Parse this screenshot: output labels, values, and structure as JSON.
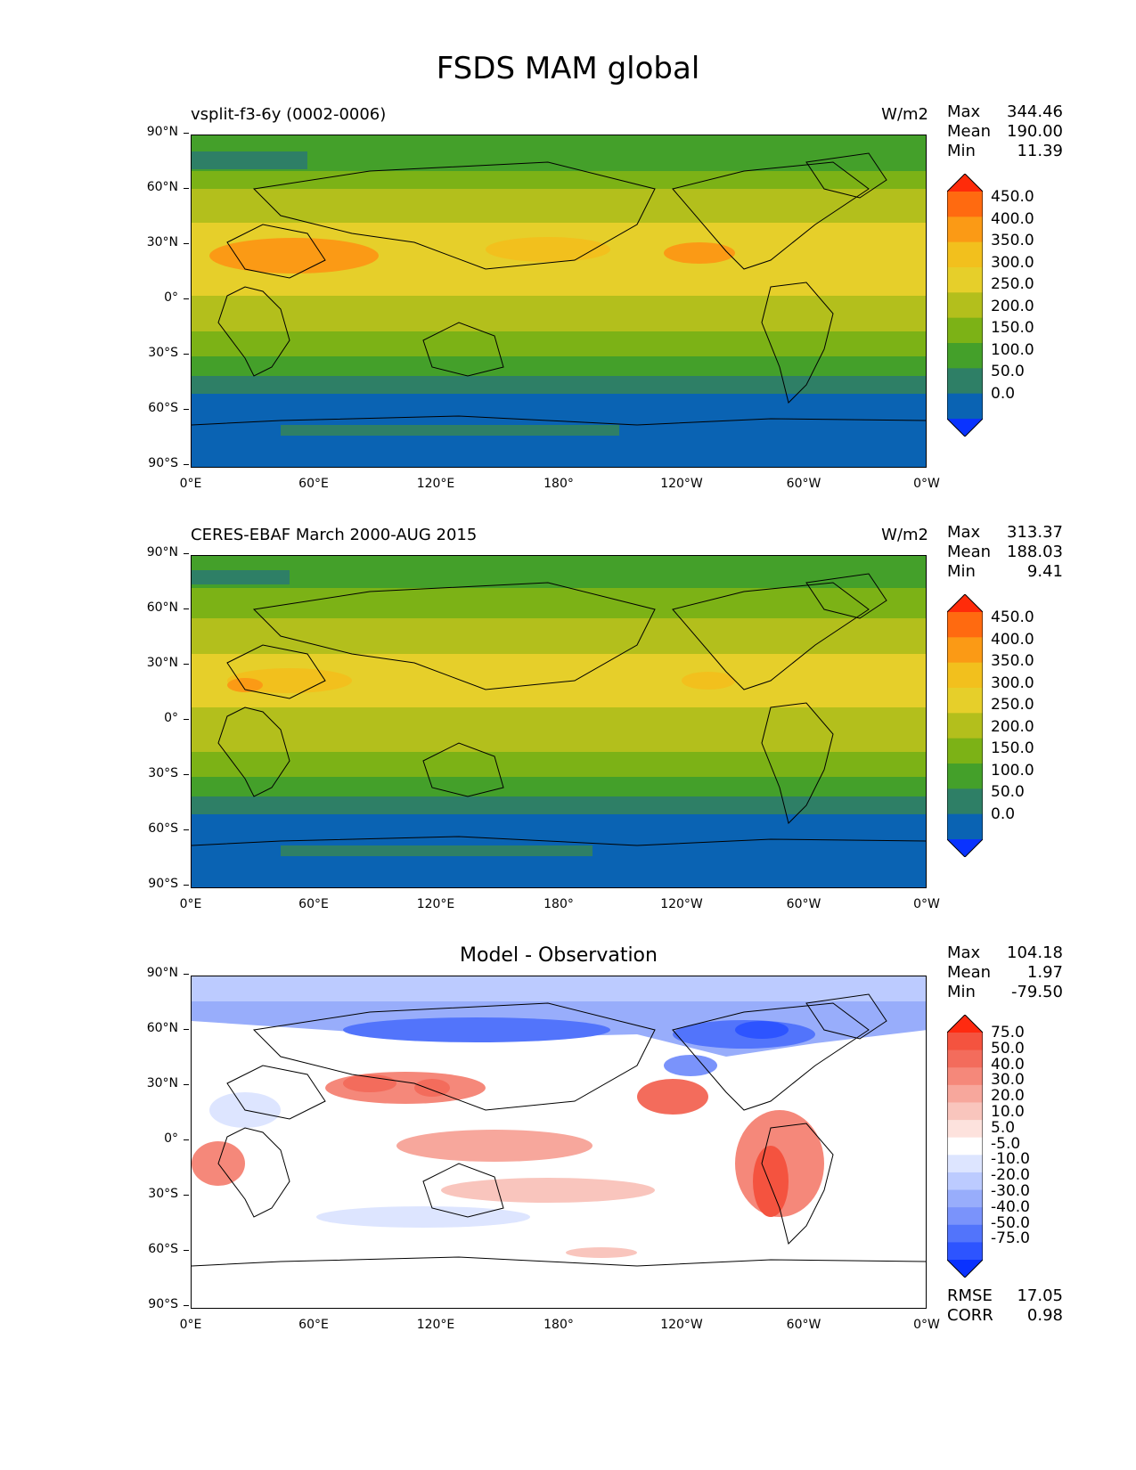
{
  "figure": {
    "title": "FSDS MAM global"
  },
  "axes": {
    "yticks": [
      "90°N",
      "60°N",
      "30°N",
      "0°",
      "30°S",
      "60°S",
      "90°S"
    ],
    "xticks": [
      "0°E",
      "60°E",
      "120°E",
      "180°",
      "120°W",
      "60°W",
      "0°W"
    ]
  },
  "panels": [
    {
      "id": "model",
      "title": "vsplit-f3-6y (0002-0006)",
      "units": "W/m2",
      "stats": {
        "max_label": "Max",
        "max": "344.46",
        "mean_label": "Mean",
        "mean": "190.00",
        "min_label": "Min",
        "min": "11.39"
      },
      "colorbar": {
        "labels": [
          "450.0",
          "400.0",
          "350.0",
          "300.0",
          "250.0",
          "200.0",
          "150.0",
          "100.0",
          "50.0",
          "0.0"
        ],
        "colors": [
          "#ff2b0a",
          "#ff6a10",
          "#fb9a15",
          "#f2c01d",
          "#e6cf2a",
          "#b3bf1c",
          "#7cb216",
          "#44a02a",
          "#2e7f66",
          "#0a63b3",
          "#0a33ff"
        ]
      }
    },
    {
      "id": "obs",
      "title": "CERES-EBAF March 2000-AUG 2015",
      "units": "W/m2",
      "stats": {
        "max_label": "Max",
        "max": "313.37",
        "mean_label": "Mean",
        "mean": "188.03",
        "min_label": "Min",
        "min": "9.41"
      },
      "colorbar": {
        "labels": [
          "450.0",
          "400.0",
          "350.0",
          "300.0",
          "250.0",
          "200.0",
          "150.0",
          "100.0",
          "50.0",
          "0.0"
        ],
        "colors": [
          "#ff2b0a",
          "#ff6a10",
          "#fb9a15",
          "#f2c01d",
          "#e6cf2a",
          "#b3bf1c",
          "#7cb216",
          "#44a02a",
          "#2e7f66",
          "#0a63b3",
          "#0a33ff"
        ]
      }
    },
    {
      "id": "diff",
      "title": "Model - Observation",
      "units": "",
      "stats": {
        "max_label": "Max",
        "max": "104.18",
        "mean_label": "Mean",
        "mean": "1.97",
        "min_label": "Min",
        "min": "-79.50"
      },
      "extra": {
        "rmse_label": "RMSE",
        "rmse": "17.05",
        "corr_label": "CORR",
        "corr": "0.98"
      },
      "colorbar": {
        "labels": [
          "75.0",
          "50.0",
          "40.0",
          "30.0",
          "20.0",
          "10.0",
          "5.0",
          "-5.0",
          "-10.0",
          "-20.0",
          "-30.0",
          "-40.0",
          "-50.0",
          "-75.0"
        ],
        "colors": [
          "#ff2a10",
          "#f4533f",
          "#f36c5c",
          "#f5887a",
          "#f7a79c",
          "#f9c5bd",
          "#fde2dd",
          "#ffffff",
          "#dde5ff",
          "#bccbff",
          "#98adfb",
          "#7a93fb",
          "#5274fb",
          "#2d54ff",
          "#0a32ff"
        ]
      }
    }
  ]
}
